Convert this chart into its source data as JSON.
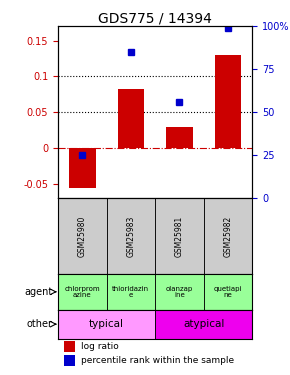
{
  "title": "GDS775 / 14394",
  "samples": [
    "GSM25980",
    "GSM25983",
    "GSM25981",
    "GSM25982"
  ],
  "log_ratios": [
    -0.055,
    0.083,
    0.03,
    0.13
  ],
  "percentile_ranks": [
    25,
    85,
    56,
    99
  ],
  "ylim_left": [
    -0.07,
    0.17
  ],
  "yticks_left": [
    -0.05,
    0.0,
    0.05,
    0.1,
    0.15
  ],
  "ytick_labels_left": [
    "-0.05",
    "0",
    "0.05",
    "0.1",
    "0.15"
  ],
  "yticks_right_pct": [
    0,
    25,
    50,
    75,
    100
  ],
  "ytick_labels_right": [
    "0",
    "25",
    "50",
    "75",
    "100%"
  ],
  "bar_color": "#cc0000",
  "dot_color": "#0000cc",
  "zero_line_color": "#cc0000",
  "agents": [
    "chlorprom\nazine",
    "thioridazin\ne",
    "olanzap\nine",
    "quetiapi\nne"
  ],
  "agent_bg": "#99ff99",
  "typical_color": "#ff99ff",
  "atypical_color": "#ee00ee",
  "typical_label": "typical",
  "atypical_label": "atypical",
  "typical_count": 2,
  "atypical_count": 2,
  "sample_bg": "#cccccc",
  "agent_row_label": "agent",
  "other_row_label": "other",
  "legend_bar_label": "log ratio",
  "legend_dot_label": "percentile rank within the sample",
  "dotted_line_values": [
    0.05,
    0.1
  ],
  "title_fontsize": 10,
  "tick_fontsize": 7,
  "sample_fontsize": 5.5,
  "agent_fontsize": 5,
  "other_fontsize": 7.5
}
